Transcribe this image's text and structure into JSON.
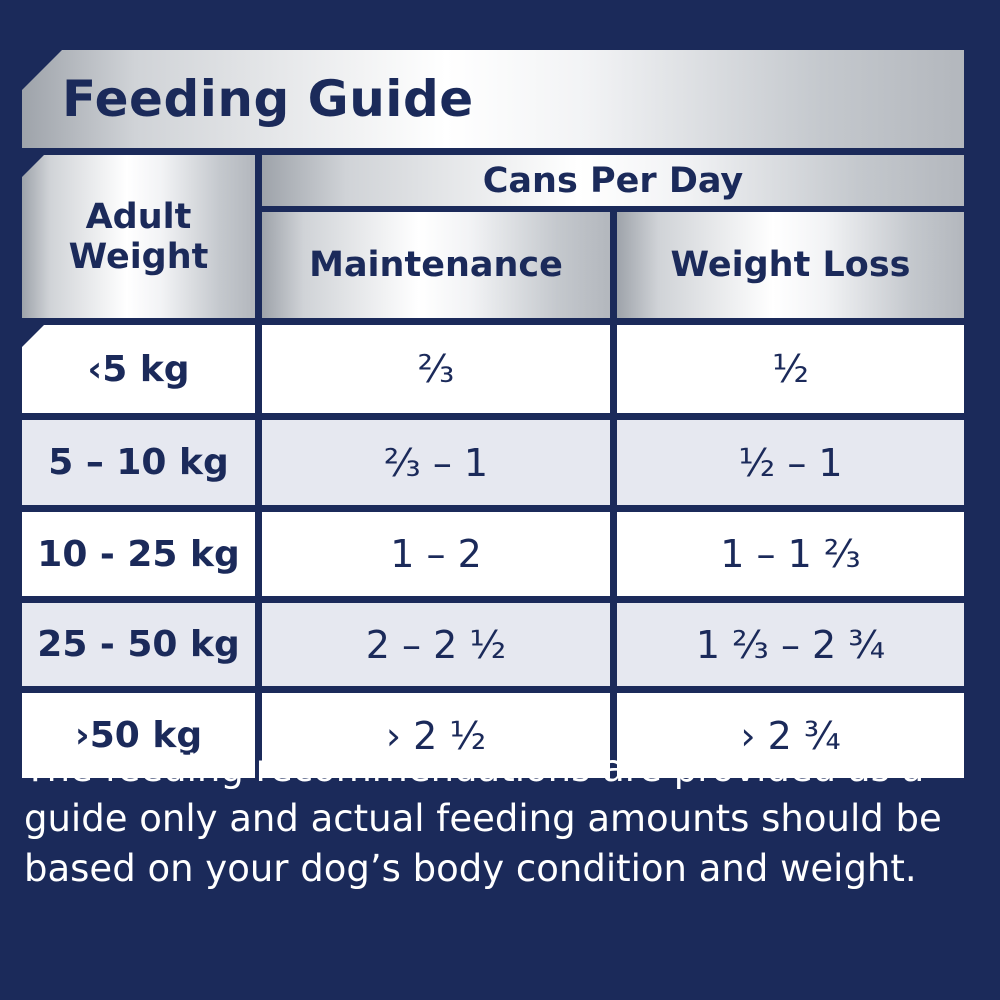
{
  "title": "Feeding Guide",
  "header": {
    "weight_line1": "Adult",
    "weight_line2": "Weight",
    "cans_per_day": "Cans Per Day",
    "maintenance": "Maintenance",
    "weight_loss": "Weight Loss"
  },
  "rows": [
    {
      "weight": "‹5 kg",
      "maintenance": "²⁄₃",
      "weight_loss": "½"
    },
    {
      "weight": "5 – 10 kg",
      "maintenance": "²⁄₃ – 1",
      "weight_loss": "½ – 1"
    },
    {
      "weight": "10 - 25 kg",
      "maintenance": "1 – 2",
      "weight_loss": "1 – 1 ²⁄₃"
    },
    {
      "weight": "25 - 50 kg",
      "maintenance": "2 – 2 ½",
      "weight_loss": "1 ²⁄₃ – 2 ¾"
    },
    {
      "weight": "›50 kg",
      "maintenance": "› 2 ½",
      "weight_loss": "› 2 ¾"
    }
  ],
  "footnote": "The feeding recommendations are provided as a guide only and actual feeding amounts should be based on your dog’s body condition and weight."
}
